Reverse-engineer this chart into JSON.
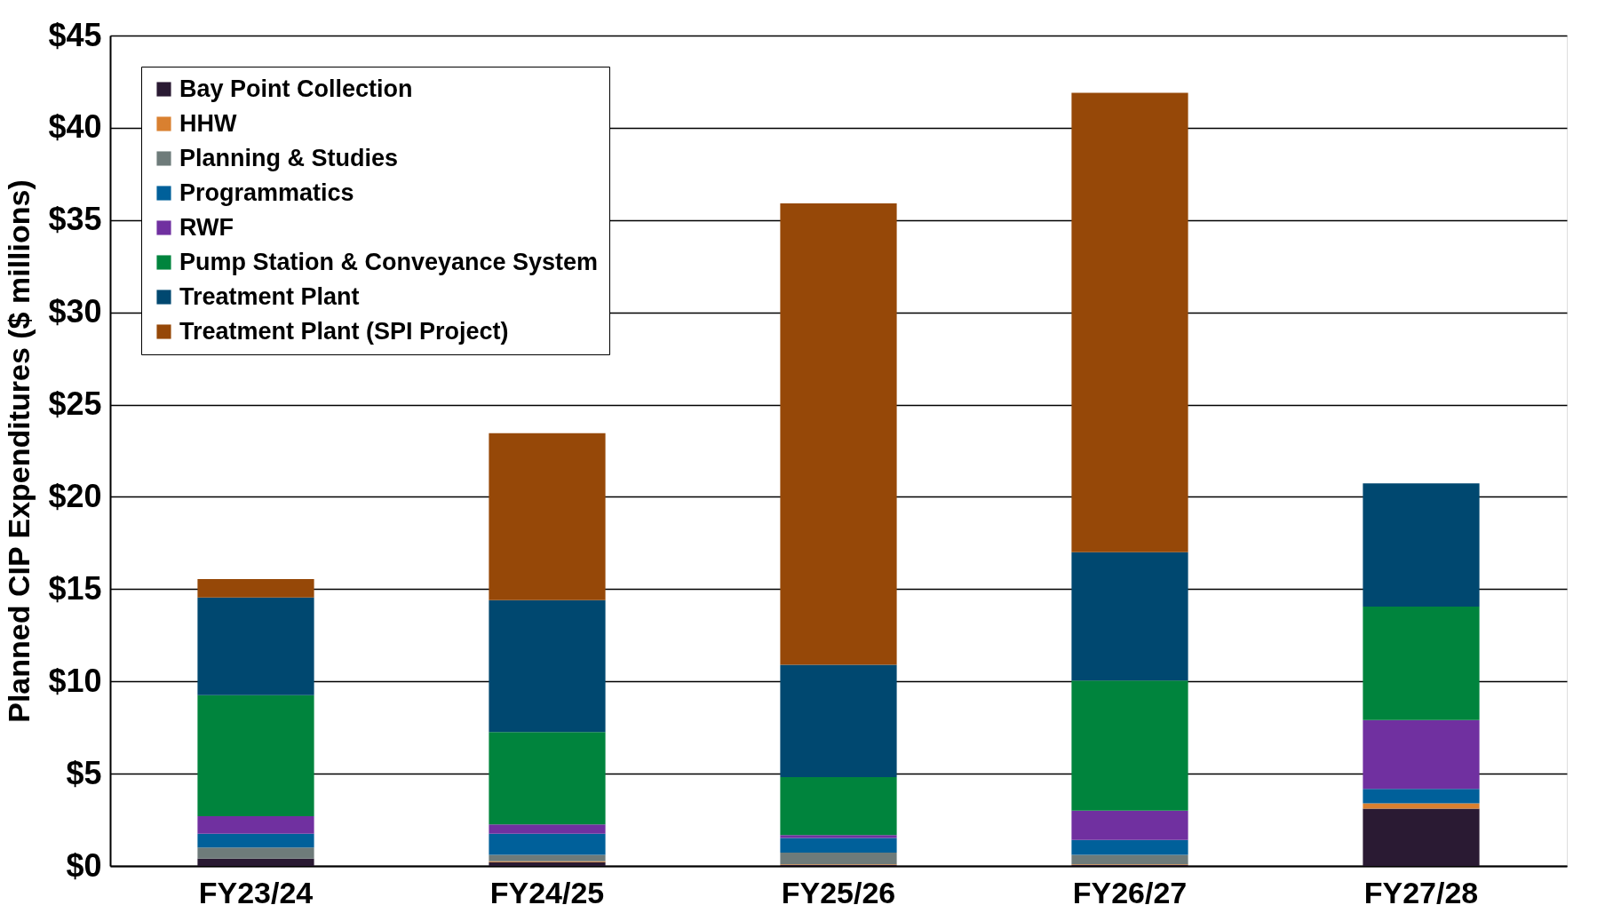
{
  "chart_data": {
    "type": "bar",
    "stacked": true,
    "ylabel": "Planned CIP Expenditures ($ millions)",
    "categories": [
      "FY23/24",
      "FY24/25",
      "FY25/26",
      "FY26/27",
      "FY27/28"
    ],
    "series": [
      {
        "name": "Bay Point Collection",
        "color": "#2a1a33",
        "values": [
          0.4,
          0.2,
          0.05,
          0.05,
          3.1
        ]
      },
      {
        "name": "HHW",
        "color": "#d98030",
        "values": [
          0,
          0.05,
          0.03,
          0.03,
          0.29
        ]
      },
      {
        "name": "Planning & Studies",
        "color": "#6e7b7a",
        "values": [
          0.6,
          0.35,
          0.64,
          0.52,
          0
        ]
      },
      {
        "name": "Programmatics",
        "color": "#00609a",
        "values": [
          0.75,
          1.15,
          0.8,
          0.81,
          0.79
        ]
      },
      {
        "name": "RWF",
        "color": "#7030a0",
        "values": [
          0.95,
          0.5,
          0.15,
          1.59,
          3.72
        ]
      },
      {
        "name": "Pump Station & Conveyance System",
        "color": "#00843d",
        "values": [
          6.55,
          5.0,
          3.14,
          7.05,
          6.15
        ]
      },
      {
        "name": "Treatment Plant",
        "color": "#004870",
        "values": [
          5.3,
          7.15,
          6.09,
          6.95,
          6.68
        ]
      },
      {
        "name": "Treatment Plant (SPI Project)",
        "color": "#964808",
        "values": [
          1.0,
          9.05,
          25.0,
          24.9,
          0
        ]
      }
    ],
    "ylim": [
      0,
      45
    ],
    "yticks": [
      {
        "value": 0,
        "label": "$0"
      },
      {
        "value": 5,
        "label": "$5"
      },
      {
        "value": 10,
        "label": "$10"
      },
      {
        "value": 15,
        "label": "$15"
      },
      {
        "value": 20,
        "label": "$20"
      },
      {
        "value": 25,
        "label": "$25"
      },
      {
        "value": 30,
        "label": "$30"
      },
      {
        "value": 35,
        "label": "$35"
      },
      {
        "value": 40,
        "label": "$40"
      },
      {
        "value": 45,
        "label": "$45"
      }
    ],
    "grid": "y",
    "legend": "top left"
  }
}
